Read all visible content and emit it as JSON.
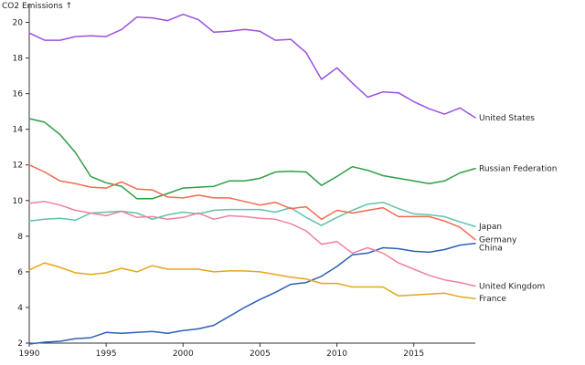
{
  "chart_data": {
    "type": "line",
    "ylabel": "CO2 Emissions ↑",
    "xlabel": "",
    "xlim": [
      1990,
      2019
    ],
    "ylim": [
      2,
      21
    ],
    "x_ticks": [
      1990,
      1995,
      2000,
      2005,
      2010,
      2015
    ],
    "y_ticks": [
      2,
      4,
      6,
      8,
      10,
      12,
      14,
      16,
      18,
      20
    ],
    "grid": false,
    "legend": "inline labels at line ends",
    "x": [
      1990,
      1991,
      1992,
      1993,
      1994,
      1995,
      1996,
      1997,
      1998,
      1999,
      2000,
      2001,
      2002,
      2003,
      2004,
      2005,
      2006,
      2007,
      2008,
      2009,
      2010,
      2011,
      2012,
      2013,
      2014,
      2015,
      2016,
      2017,
      2018,
      2019
    ],
    "series": [
      {
        "name": "United States",
        "color": "#9b4fe0",
        "values": [
          19.4,
          19.0,
          19.0,
          19.2,
          19.25,
          19.2,
          19.6,
          20.3,
          20.25,
          20.1,
          20.45,
          20.15,
          19.45,
          19.5,
          19.6,
          19.5,
          19.0,
          19.05,
          18.3,
          16.8,
          17.45,
          16.6,
          15.8,
          16.1,
          16.05,
          15.55,
          15.15,
          14.85,
          15.2,
          14.65
        ]
      },
      {
        "name": "Russian Federation",
        "color": "#2e9e44",
        "values": [
          14.6,
          14.4,
          13.7,
          12.7,
          11.35,
          11.0,
          10.8,
          10.1,
          10.1,
          10.4,
          10.7,
          10.75,
          10.8,
          11.1,
          11.1,
          11.25,
          11.6,
          11.65,
          11.6,
          10.85,
          11.35,
          11.9,
          11.7,
          11.4,
          11.25,
          11.1,
          10.95,
          11.1,
          11.55,
          11.8
        ]
      },
      {
        "name": "Japan",
        "color": "#5fc2aa",
        "values": [
          8.85,
          8.95,
          9.0,
          8.9,
          9.3,
          9.35,
          9.4,
          9.3,
          8.95,
          9.2,
          9.35,
          9.25,
          9.45,
          9.5,
          9.5,
          9.5,
          9.35,
          9.6,
          9.05,
          8.6,
          9.05,
          9.45,
          9.8,
          9.9,
          9.55,
          9.25,
          9.2,
          9.1,
          8.8,
          8.55
        ]
      },
      {
        "name": "Germany",
        "color": "#f26a4f",
        "values": [
          12.0,
          11.6,
          11.1,
          10.95,
          10.75,
          10.7,
          11.05,
          10.65,
          10.6,
          10.2,
          10.15,
          10.3,
          10.15,
          10.15,
          9.95,
          9.75,
          9.9,
          9.55,
          9.65,
          8.95,
          9.45,
          9.3,
          9.45,
          9.6,
          9.1,
          9.1,
          9.1,
          8.85,
          8.5,
          7.8
        ]
      },
      {
        "name": "China",
        "color": "#2b62b3",
        "values": [
          1.95,
          2.05,
          2.1,
          2.25,
          2.3,
          2.6,
          2.55,
          2.6,
          2.65,
          2.55,
          2.7,
          2.8,
          3.0,
          3.5,
          4.0,
          4.45,
          4.85,
          5.3,
          5.4,
          5.75,
          6.3,
          6.95,
          7.05,
          7.35,
          7.3,
          7.15,
          7.1,
          7.25,
          7.5,
          7.6
        ]
      },
      {
        "name": "United Kingdom",
        "color": "#f0809f",
        "values": [
          9.85,
          9.95,
          9.75,
          9.45,
          9.3,
          9.15,
          9.4,
          9.05,
          9.1,
          8.95,
          9.05,
          9.3,
          8.95,
          9.15,
          9.1,
          9.0,
          8.95,
          8.7,
          8.3,
          7.55,
          7.7,
          7.05,
          7.35,
          7.05,
          6.5,
          6.15,
          5.8,
          5.55,
          5.4,
          5.2
        ]
      },
      {
        "name": "France",
        "color": "#e5a619",
        "values": [
          6.1,
          6.5,
          6.25,
          5.95,
          5.85,
          5.95,
          6.2,
          6.0,
          6.35,
          6.15,
          6.15,
          6.15,
          6.0,
          6.05,
          6.05,
          6.0,
          5.85,
          5.7,
          5.6,
          5.35,
          5.35,
          5.15,
          5.15,
          5.15,
          4.65,
          4.7,
          4.75,
          4.8,
          4.6,
          4.5
        ]
      }
    ]
  }
}
